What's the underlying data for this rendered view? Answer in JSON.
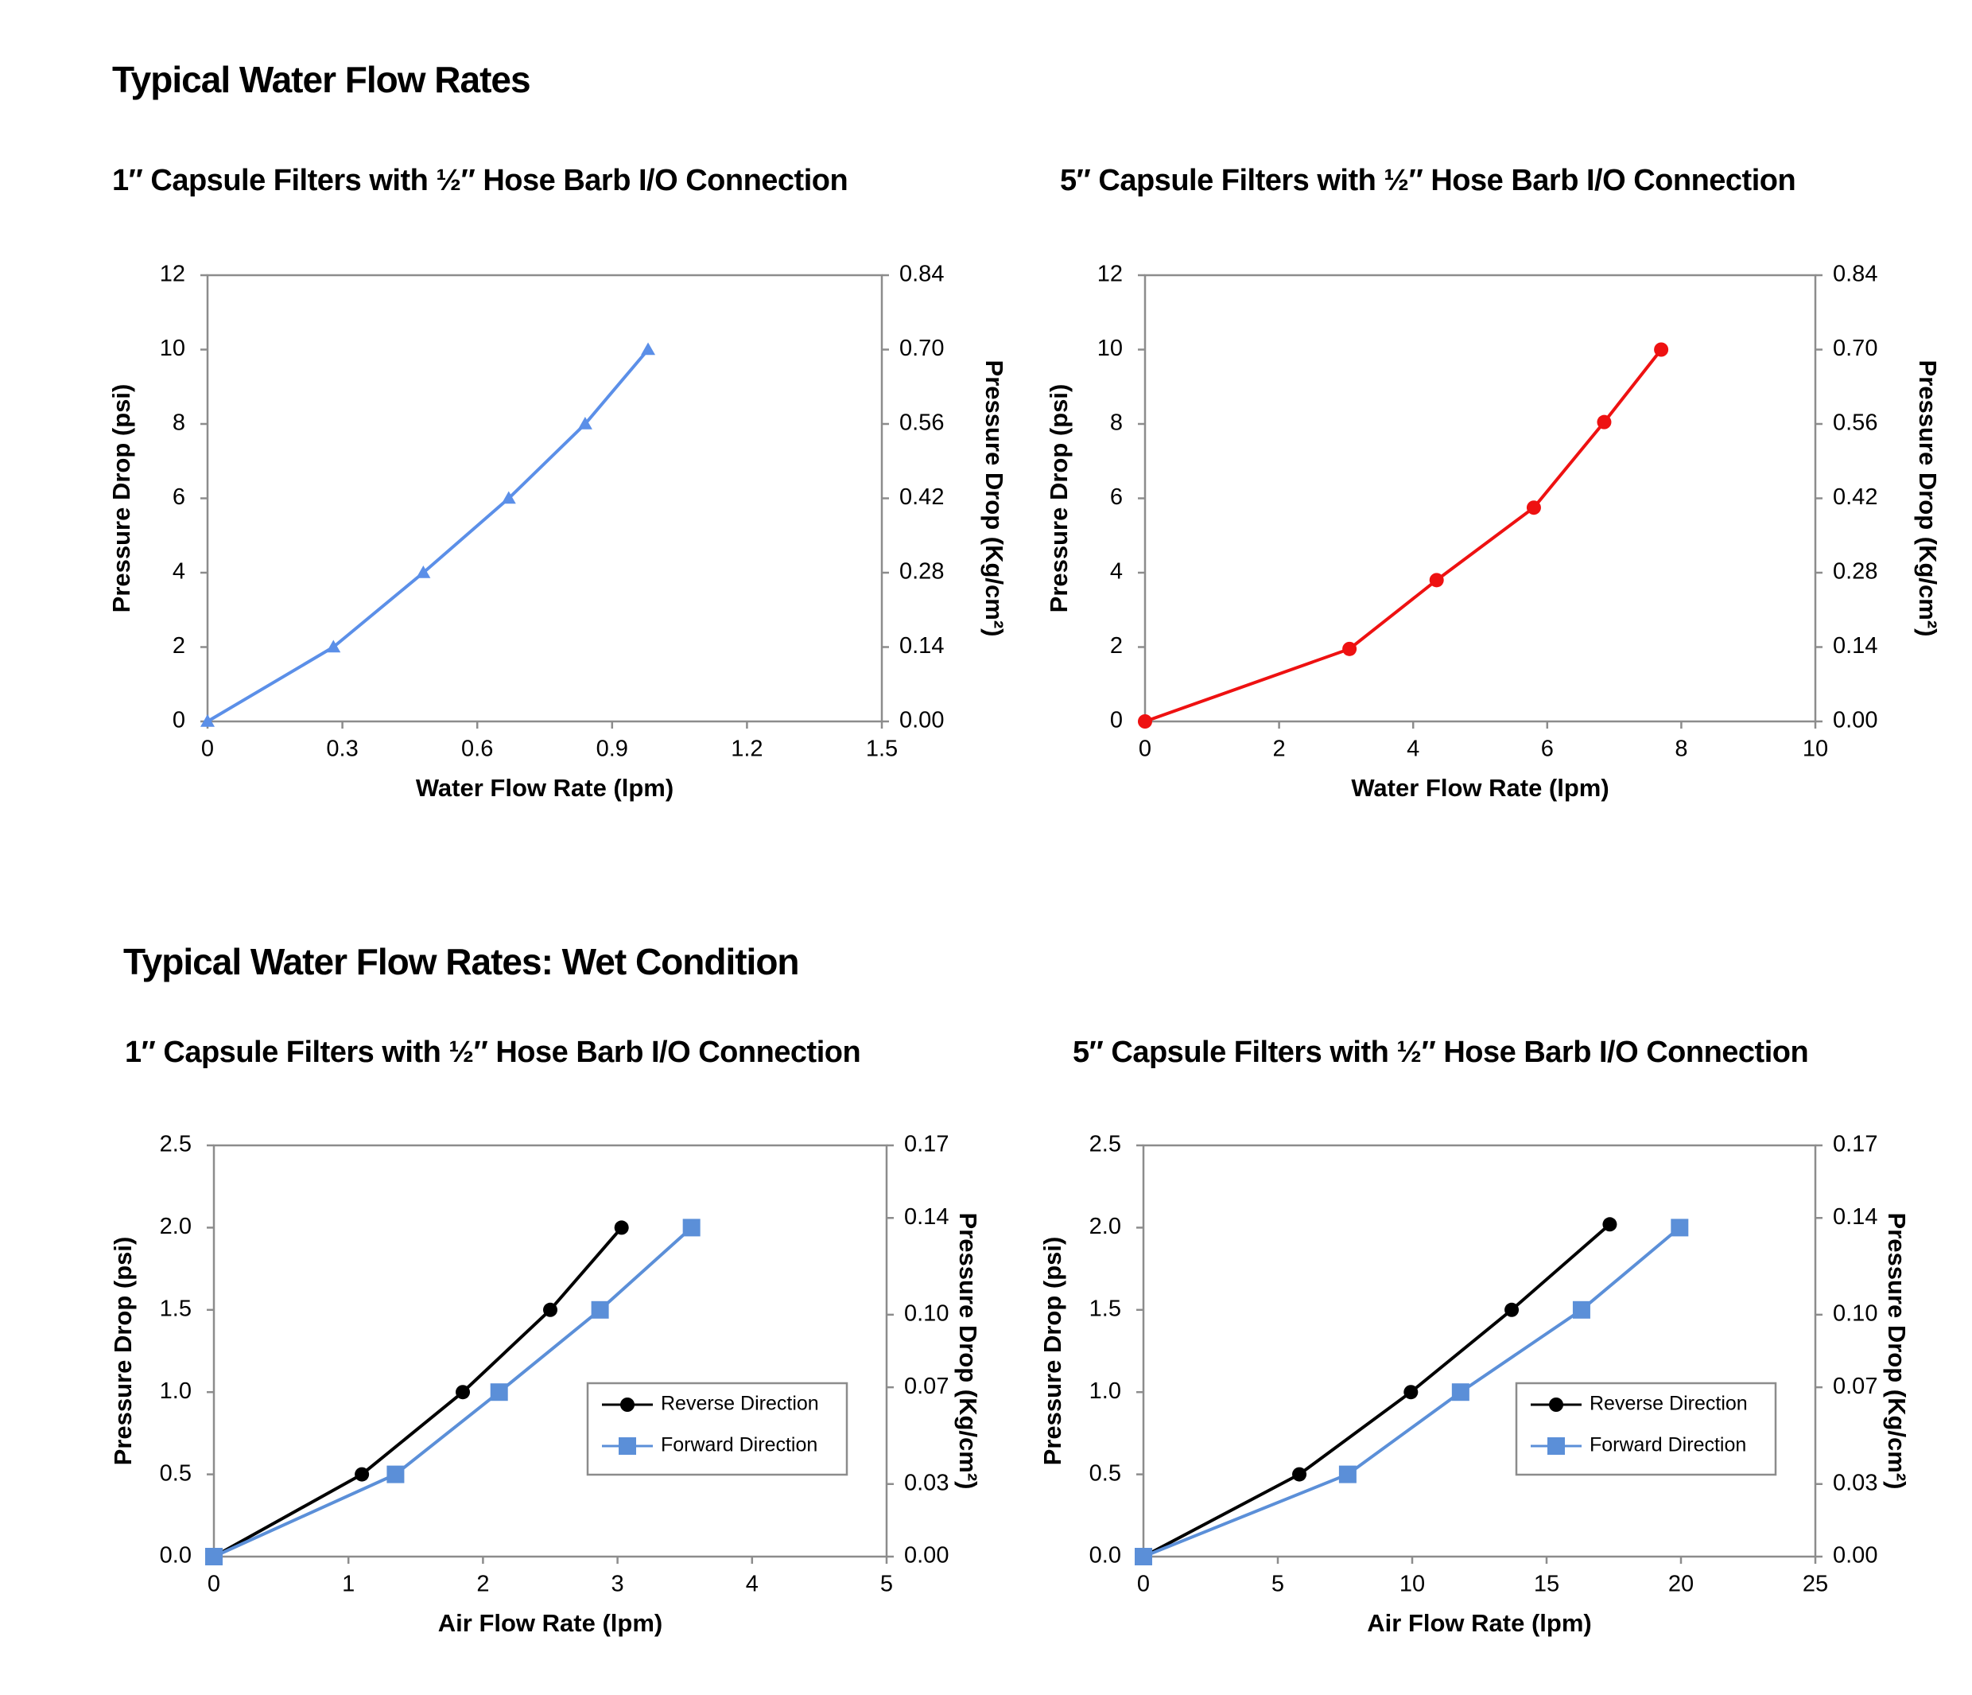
{
  "headings": [
    "Typical Water Flow Rates",
    "Typical Water Flow Rates: Wet Condition"
  ],
  "chart_data": [
    {
      "type": "line",
      "title": "1″ Capsule Filters with ½″ Hose Barb I/O Connection",
      "xlabel": "Water Flow Rate (lpm)",
      "ylabel": "Pressure Drop  (psi)",
      "y2label": "Pressure Drop (Kg/cm²)",
      "x": [
        0,
        0.28,
        0.48,
        0.67,
        0.84,
        0.98
      ],
      "values": [
        0,
        2,
        4,
        6,
        8,
        10
      ],
      "color": "#5b8fe8",
      "marker": "triangle",
      "xlim": [
        0,
        1.5
      ],
      "xticks": [
        0,
        0.3,
        0.6,
        0.9,
        1.2,
        1.5
      ],
      "ylim": [
        0,
        12
      ],
      "yticks": [
        0,
        2,
        4,
        6,
        8,
        10,
        12
      ],
      "y2lim": [
        0,
        0.84
      ],
      "y2ticks": [
        {
          "value": 0,
          "label": "0.00"
        },
        0.14,
        0.28,
        0.42,
        0.56,
        {
          "value": 0.7,
          "label": "0.70"
        },
        0.84
      ]
    },
    {
      "type": "line",
      "title": "5″ Capsule Filters with ½″ Hose Barb I/O Connection",
      "xlabel": "Water Flow Rate (lpm)",
      "ylabel": "Pressure Drop  (psi)",
      "y2label": "Pressure Drop (Kg/cm²)",
      "x": [
        0,
        3.05,
        4.35,
        5.8,
        6.85,
        7.7
      ],
      "values": [
        0,
        1.95,
        3.8,
        5.75,
        8.05,
        10
      ],
      "color": "#ee1111",
      "marker": "circle",
      "xlim": [
        0,
        10
      ],
      "xticks": [
        0,
        2,
        4,
        6,
        8,
        10
      ],
      "ylim": [
        0,
        12
      ],
      "yticks": [
        0,
        2,
        4,
        6,
        8,
        10,
        12
      ],
      "y2lim": [
        0,
        0.84
      ],
      "y2ticks": [
        {
          "value": 0,
          "label": "0.00"
        },
        0.14,
        0.28,
        0.42,
        0.56,
        {
          "value": 0.7,
          "label": "0.70"
        },
        0.84
      ]
    },
    {
      "type": "line",
      "title": "1″ Capsule Filters with ½″ Hose Barb I/O Connection",
      "xlabel": "Air Flow Rate (lpm)",
      "ylabel": "Pressure Drop (psi)",
      "y2label": "Pressure Drop (Kg/cm²)",
      "series": [
        {
          "name": "Reverse Direction",
          "color": "#000000",
          "marker": "circle",
          "x": [
            0,
            1.1,
            1.85,
            2.5,
            3.03
          ],
          "values": [
            0,
            0.5,
            1.0,
            1.5,
            2.0
          ]
        },
        {
          "name": "Forward Direction",
          "color": "#5b8fd8",
          "marker": "square",
          "x": [
            0,
            1.35,
            2.12,
            2.87,
            3.55
          ],
          "values": [
            0,
            0.5,
            1.0,
            1.5,
            2.0
          ]
        }
      ],
      "legend": "lower right",
      "xlim": [
        0,
        5
      ],
      "xticks": [
        0,
        1,
        2,
        3,
        4,
        5
      ],
      "ylim": [
        0,
        2.5
      ],
      "yticks": [
        {
          "value": 0,
          "label": "0.0"
        },
        0.5,
        {
          "value": 1,
          "label": "1.0"
        },
        1.5,
        {
          "value": 2,
          "label": "2.0"
        },
        2.5
      ],
      "y2lim": [
        0,
        0.17
      ],
      "y2ticks": [
        {
          "value": 0,
          "label": "0.00"
        },
        0.03,
        0.07,
        {
          "value": 0.1,
          "label": "0.10"
        },
        0.14,
        0.17
      ]
    },
    {
      "type": "line",
      "title": "5″ Capsule Filters with ½″ Hose Barb I/O Connection",
      "xlabel": "Air Flow Rate (lpm)",
      "ylabel": "Pressure Drop (psi)",
      "y2label": "Pressure Drop (Kg/cm²)",
      "series": [
        {
          "name": "Reverse Direction",
          "color": "#000000",
          "marker": "circle",
          "x": [
            0,
            5.8,
            9.95,
            13.7,
            17.35
          ],
          "values": [
            0,
            0.5,
            1.0,
            1.5,
            2.02
          ]
        },
        {
          "name": "Forward Direction",
          "color": "#5b8fd8",
          "marker": "square",
          "x": [
            0,
            7.6,
            11.8,
            16.3,
            19.95
          ],
          "values": [
            0,
            0.5,
            1.0,
            1.5,
            2.0
          ]
        }
      ],
      "legend": "lower right",
      "xlim": [
        0,
        25
      ],
      "xticks": [
        0,
        5,
        10,
        15,
        20,
        25
      ],
      "ylim": [
        0,
        2.5
      ],
      "yticks": [
        {
          "value": 0,
          "label": "0.0"
        },
        0.5,
        {
          "value": 1,
          "label": "1.0"
        },
        1.5,
        {
          "value": 2,
          "label": "2.0"
        },
        2.5
      ],
      "y2lim": [
        0,
        0.17
      ],
      "y2ticks": [
        {
          "value": 0,
          "label": "0.00"
        },
        0.03,
        0.07,
        {
          "value": 0.1,
          "label": "0.10"
        },
        0.14,
        0.17
      ]
    }
  ]
}
